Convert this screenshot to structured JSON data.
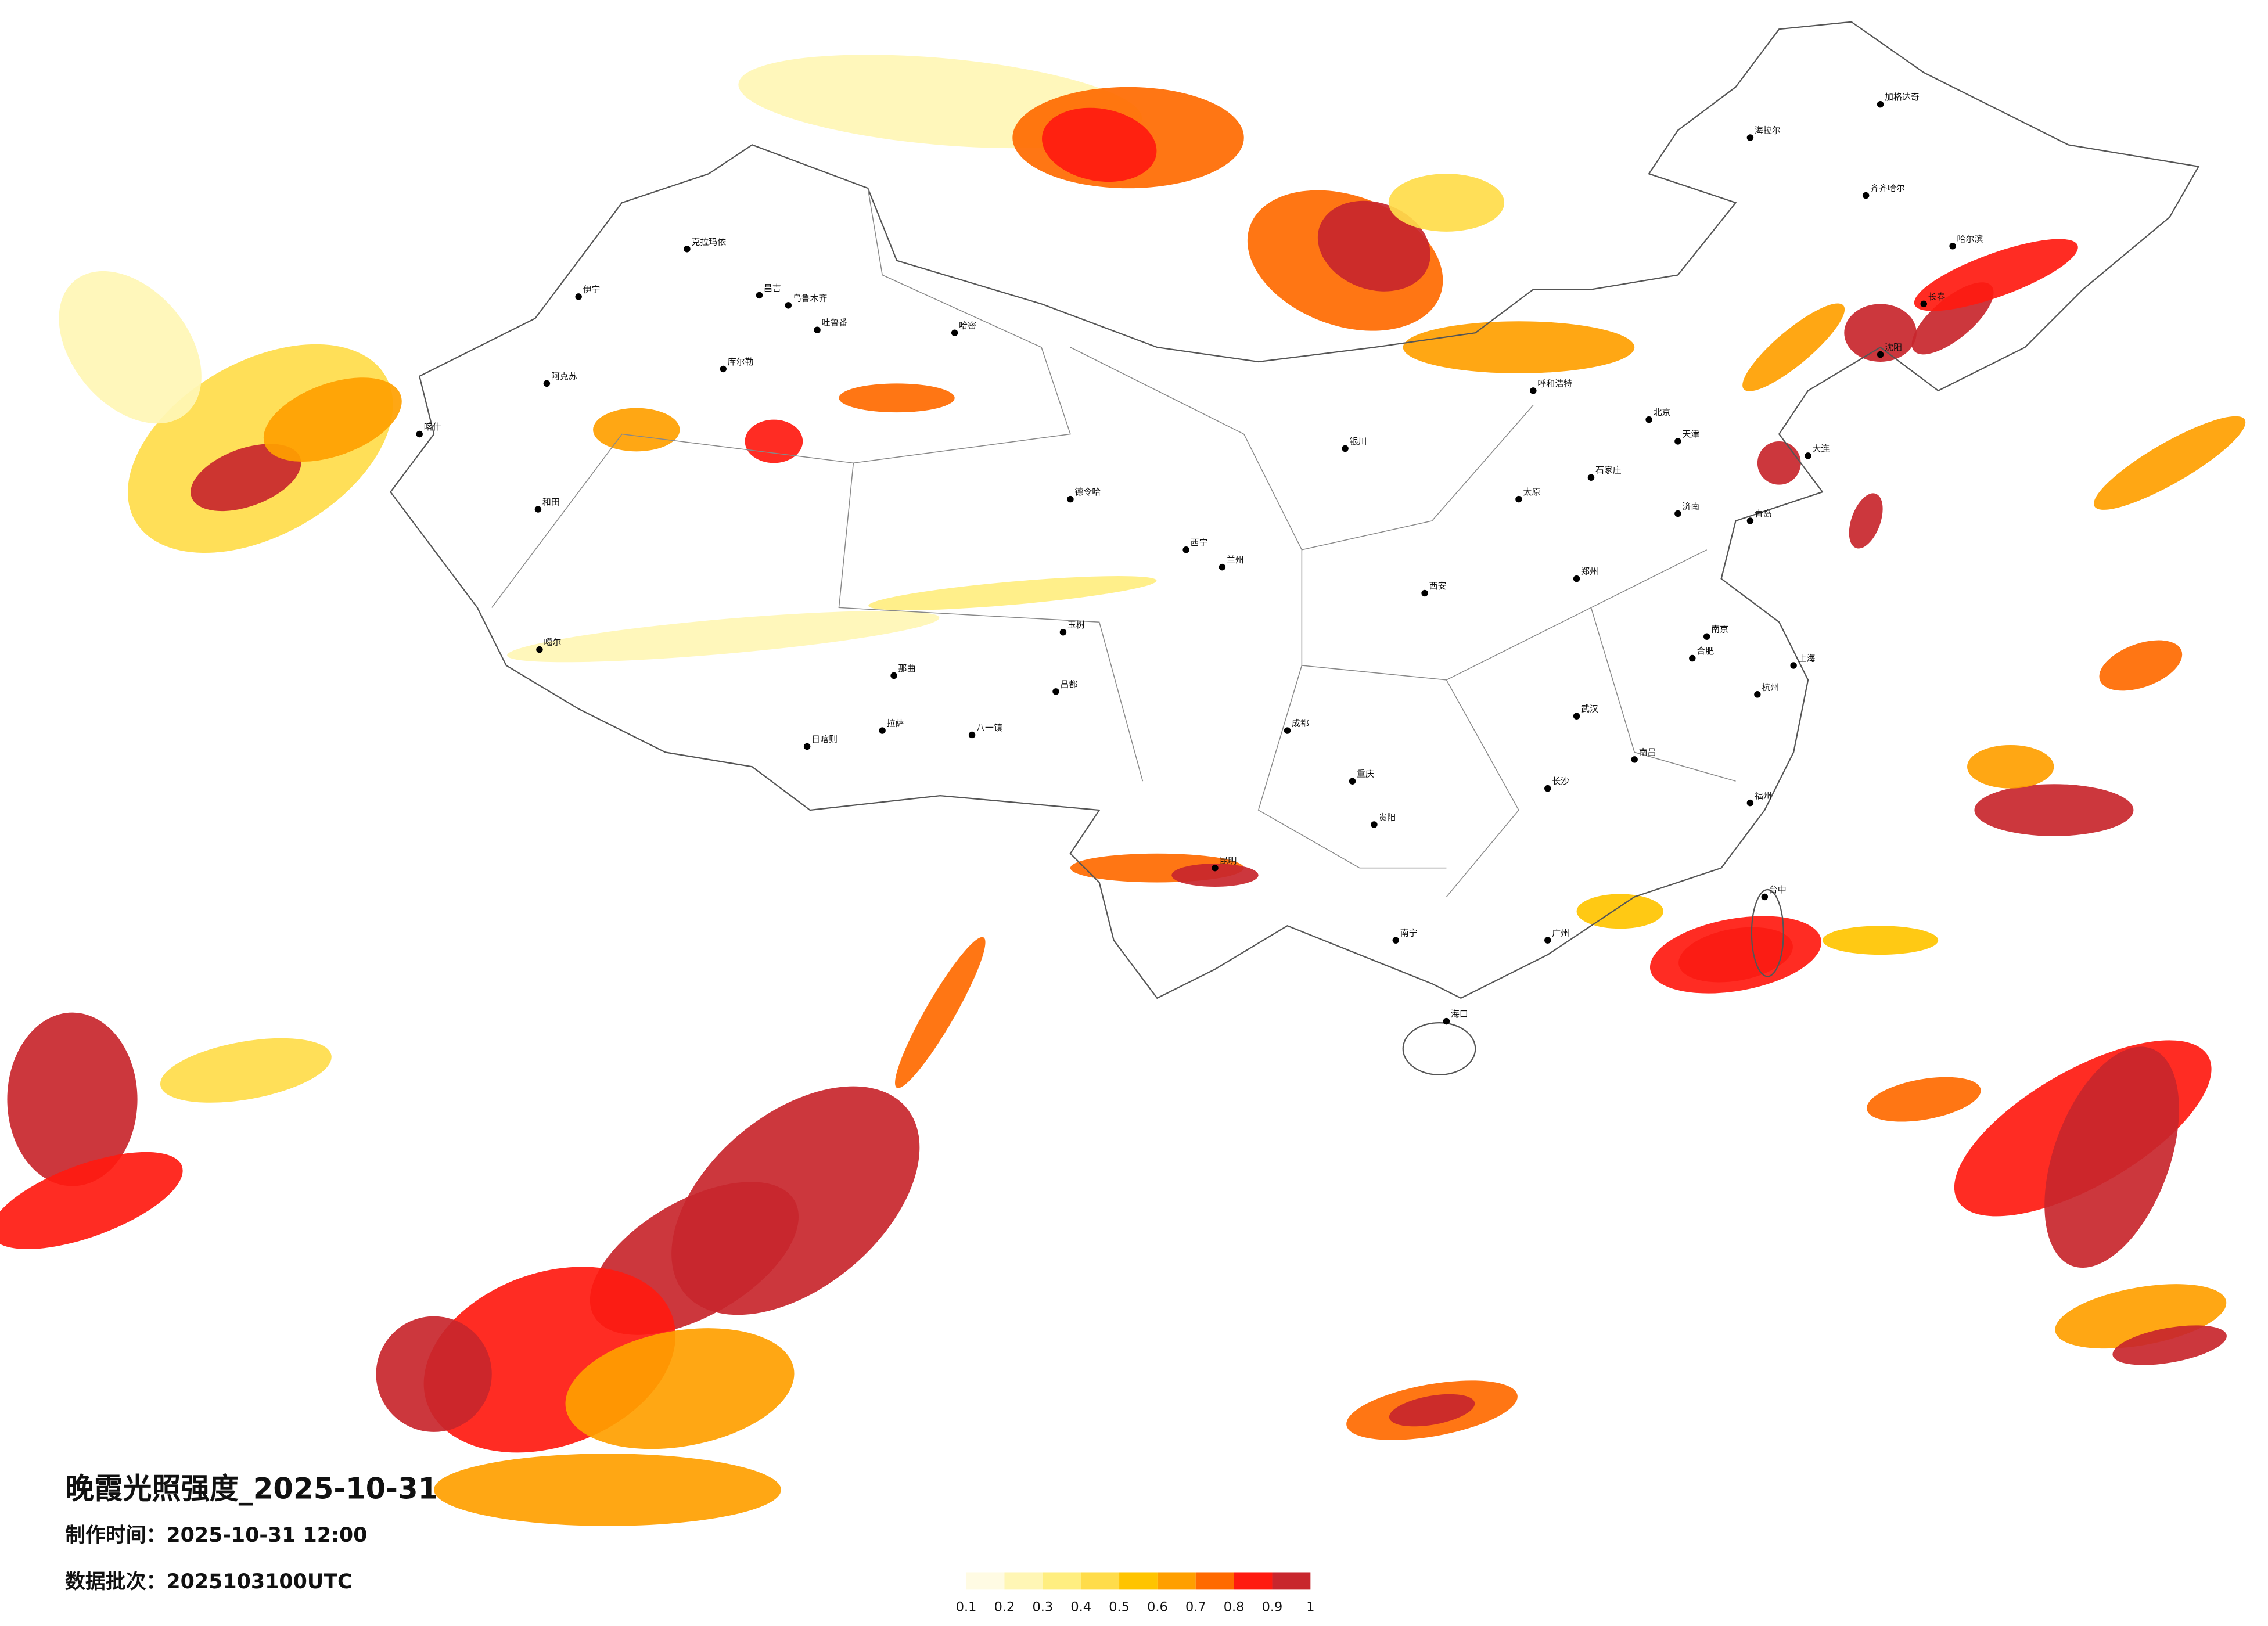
{
  "title": "晚霞光照强度_2025-10-31",
  "made_time": "制作时间：2025-10-31 12:00",
  "batch": "数据批次：2025103100UTC",
  "legend": {
    "colors": [
      "#fffbe3",
      "#fff6b5",
      "#ffee80",
      "#ffdc4a",
      "#ffc400",
      "#ff9f00",
      "#ff6a00",
      "#ff1a10",
      "#c8262d"
    ],
    "ticks": [
      0.1,
      0.2,
      0.3,
      0.4,
      0.5,
      0.6,
      0.7,
      0.8,
      0.9,
      1
    ]
  },
  "cities": [
    "克拉玛依",
    "伊宁",
    "昌吉",
    "乌鲁木齐",
    "吐鲁番",
    "哈密",
    "库尔勒",
    "阿克苏",
    "和田",
    "喀什",
    "噶尔",
    "日喀则",
    "拉萨",
    "那曲",
    "八一镇",
    "昌都",
    "玉树",
    "德令哈",
    "西宁",
    "兰州",
    "银川",
    "呼和浩特",
    "海拉尔",
    "加格达奇",
    "齐齐哈尔",
    "哈尔滨",
    "长春",
    "沈阳",
    "北京",
    "天津",
    "大连",
    "石家庄",
    "太原",
    "济南",
    "青岛",
    "郑州",
    "西安",
    "成都",
    "重庆",
    "贵阳",
    "昆明",
    "南宁",
    "广州",
    "海口",
    "武汉",
    "长沙",
    "南昌",
    "合肥",
    "南京",
    "上海",
    "杭州",
    "福州",
    "台中"
  ]
}
